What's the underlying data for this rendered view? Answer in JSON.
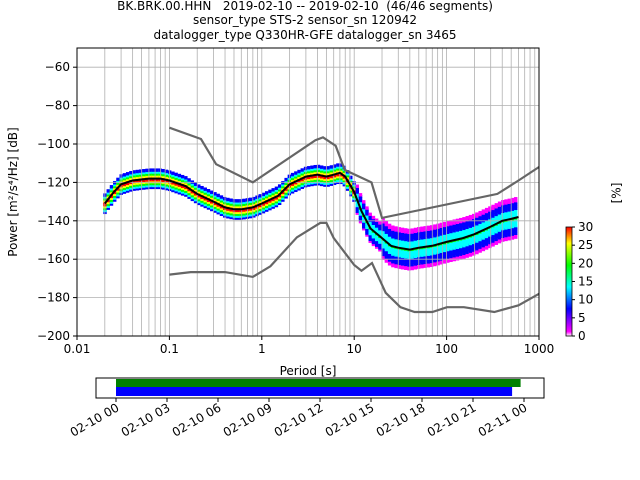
{
  "title_lines": [
    "BK.BRK.00.HHN   2019-02-10 -- 2019-02-10  (46/46 segments)",
    "sensor_type STS-2 sensor_sn 120942",
    "datalogger_type Q330HR-GFE datalogger_sn 3465"
  ],
  "chart_data": [
    {
      "type": "heatmap",
      "title": "BK.BRK.00.HHN   2019-02-10 -- 2019-02-10  (46/46 segments)",
      "xlabel": "Period [s]",
      "ylabel": "Power [m²/s⁴/Hz] [dB]",
      "xscale": "log",
      "xlim": [
        0.01,
        1000
      ],
      "ylim": [
        -200,
        -50
      ],
      "x_tick_labels": [
        "0.01",
        "0.1",
        "1",
        "10",
        "100",
        "1000"
      ],
      "y_ticks": [
        -60,
        -80,
        -100,
        -120,
        -140,
        -160,
        -180,
        -200
      ],
      "grid": true,
      "colorbar": {
        "label": "[%]",
        "range": [
          0,
          30
        ],
        "ticks": [
          0,
          5,
          10,
          15,
          20,
          25,
          30
        ]
      },
      "series": [
        {
          "name": "mode",
          "color": "#000000",
          "points": [
            [
              0.02,
              -131
            ],
            [
              0.025,
              -125
            ],
            [
              0.03,
              -121
            ],
            [
              0.04,
              -119
            ],
            [
              0.06,
              -118
            ],
            [
              0.08,
              -118
            ],
            [
              0.1,
              -119
            ],
            [
              0.15,
              -122
            ],
            [
              0.2,
              -126
            ],
            [
              0.3,
              -130
            ],
            [
              0.4,
              -133
            ],
            [
              0.5,
              -134
            ],
            [
              0.6,
              -134
            ],
            [
              0.8,
              -133
            ],
            [
              1,
              -131
            ],
            [
              1.5,
              -127
            ],
            [
              2,
              -121
            ],
            [
              3,
              -117
            ],
            [
              4,
              -116
            ],
            [
              5,
              -117
            ],
            [
              6,
              -116
            ],
            [
              7,
              -115
            ],
            [
              8,
              -117
            ],
            [
              10,
              -125
            ],
            [
              12,
              -135
            ],
            [
              15,
              -144
            ],
            [
              20,
              -149
            ],
            [
              25,
              -153
            ],
            [
              30,
              -154
            ],
            [
              40,
              -155
            ],
            [
              50,
              -154
            ],
            [
              70,
              -153
            ],
            [
              100,
              -151
            ],
            [
              150,
              -149
            ],
            [
              200,
              -147
            ],
            [
              300,
              -143
            ],
            [
              400,
              -140
            ],
            [
              500,
              -139
            ],
            [
              600,
              -138
            ]
          ]
        },
        {
          "name": "NHNM",
          "color": "#666666",
          "points": [
            [
              0.1,
              -91.5
            ],
            [
              0.22,
              -97.4
            ],
            [
              0.32,
              -110.5
            ],
            [
              0.8,
              -120
            ],
            [
              3.8,
              -98
            ],
            [
              4.6,
              -96.5
            ],
            [
              6.3,
              -101
            ],
            [
              7.9,
              -113.5
            ],
            [
              15.4,
              -120
            ],
            [
              20,
              -138.5
            ],
            [
              354.8,
              -126
            ],
            [
              600,
              -119
            ],
            [
              1000,
              -112
            ]
          ]
        },
        {
          "name": "NLNM",
          "color": "#666666",
          "points": [
            [
              0.1,
              -168
            ],
            [
              0.17,
              -166.7
            ],
            [
              0.4,
              -166.7
            ],
            [
              0.8,
              -169.2
            ],
            [
              1.24,
              -163.7
            ],
            [
              2.4,
              -148.6
            ],
            [
              4.3,
              -141.1
            ],
            [
              5,
              -141.1
            ],
            [
              6,
              -149
            ],
            [
              10,
              -163
            ],
            [
              12,
              -166
            ],
            [
              15.6,
              -162
            ],
            [
              21.9,
              -177.5
            ],
            [
              31.6,
              -185
            ],
            [
              45,
              -187.5
            ],
            [
              70,
              -187.5
            ],
            [
              101,
              -185
            ],
            [
              154,
              -185
            ],
            [
              328,
              -187.5
            ],
            [
              600,
              -184
            ],
            [
              1000,
              -178
            ]
          ]
        }
      ],
      "density_color_range": [
        "#ff00ff",
        "#0000ff",
        "#00ffff",
        "#00ff00",
        "#ffff00",
        "#ff0000"
      ]
    },
    {
      "type": "bar",
      "title": "",
      "x_tick_labels": [
        "02-10 00",
        "02-10 03",
        "02-10 06",
        "02-10 09",
        "02-10 12",
        "02-10 15",
        "02-10 18",
        "02-10 21",
        "02-11 00"
      ],
      "series": [
        {
          "name": "",
          "color": "#008000",
          "span_hours": [
            0,
            23.8
          ]
        },
        {
          "name": "",
          "color": "#0000ff",
          "span_hours": [
            0,
            23.3
          ]
        }
      ]
    }
  ]
}
